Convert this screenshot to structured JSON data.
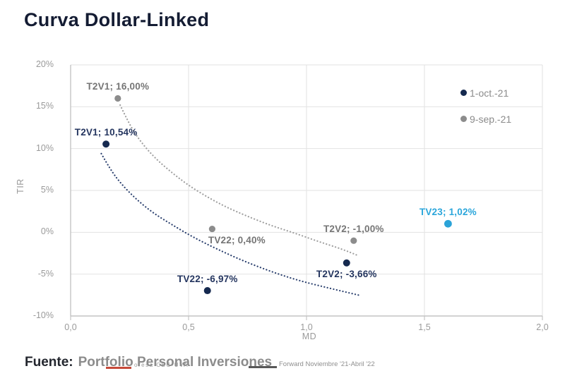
{
  "page": {
    "title": "Curva Dollar-Linked"
  },
  "chart_data": {
    "type": "scatter",
    "title": "Curva Dollar-Linked",
    "xlabel": "MD",
    "ylabel": "TIR",
    "xlim": [
      0,
      2
    ],
    "ylim": [
      -10,
      20
    ],
    "grid": true,
    "legend_position": "inside-top-right",
    "x_ticks": [
      {
        "v": 0,
        "label": "0,0"
      },
      {
        "v": 0.5,
        "label": "0,5"
      },
      {
        "v": 1,
        "label": "1,0"
      },
      {
        "v": 1.5,
        "label": "1,5"
      },
      {
        "v": 2,
        "label": "2,0"
      }
    ],
    "y_ticks": [
      {
        "v": 20,
        "label": "20%"
      },
      {
        "v": 15,
        "label": "15%"
      },
      {
        "v": 10,
        "label": "10%"
      },
      {
        "v": 5,
        "label": "5%"
      },
      {
        "v": 0,
        "label": "0%"
      },
      {
        "v": -5,
        "label": "-5%"
      },
      {
        "v": -10,
        "label": "-10%"
      }
    ],
    "series": [
      {
        "name": "1-oct.-21",
        "color": "#15294f",
        "label_color": "#24355f",
        "trend_color": "#2c416f",
        "in_legend": true,
        "points": [
          {
            "bond": "T2V1",
            "x": 0.15,
            "y": 10.54,
            "label": "T2V1; 10,54%",
            "label_pos": "above"
          },
          {
            "bond": "TV22",
            "x": 0.58,
            "y": -6.97,
            "label": "TV22; -6,97%",
            "label_pos": "above"
          },
          {
            "bond": "T2V2",
            "x": 1.17,
            "y": -3.66,
            "label": "T2V2; -3,66%",
            "label_pos": "below"
          }
        ],
        "trend": [
          [
            0.13,
            9.4
          ],
          [
            0.17,
            7.4
          ],
          [
            0.22,
            5.6
          ],
          [
            0.28,
            3.9
          ],
          [
            0.35,
            2.3
          ],
          [
            0.43,
            0.9
          ],
          [
            0.52,
            -0.6
          ],
          [
            0.62,
            -2.0
          ],
          [
            0.73,
            -3.4
          ],
          [
            0.85,
            -4.7
          ],
          [
            0.97,
            -5.8
          ],
          [
            1.1,
            -6.7
          ],
          [
            1.22,
            -7.5
          ]
        ]
      },
      {
        "name": "9-sep.-21",
        "color": "#8c8c8c",
        "label_color": "#757575",
        "trend_color": "#a0a0a0",
        "in_legend": true,
        "points": [
          {
            "bond": "T2V1",
            "x": 0.2,
            "y": 16.0,
            "label": "T2V1; 16,00%",
            "label_pos": "above"
          },
          {
            "bond": "TV22",
            "x": 0.6,
            "y": 0.4,
            "label": "TV22; 0,40%",
            "label_pos": "below",
            "label_dx": 35
          },
          {
            "bond": "T2V2",
            "x": 1.2,
            "y": -1.0,
            "label": "T2V2; -1,00%",
            "label_pos": "above"
          }
        ],
        "trend": [
          [
            0.21,
            15.2
          ],
          [
            0.25,
            12.8
          ],
          [
            0.3,
            10.7
          ],
          [
            0.36,
            8.8
          ],
          [
            0.43,
            7.1
          ],
          [
            0.5,
            5.6
          ],
          [
            0.58,
            4.2
          ],
          [
            0.66,
            3.0
          ],
          [
            0.75,
            1.9
          ],
          [
            0.85,
            0.8
          ],
          [
            0.95,
            -0.1
          ],
          [
            1.05,
            -1.1
          ],
          [
            1.15,
            -2.0
          ],
          [
            1.22,
            -2.8
          ]
        ]
      },
      {
        "name": "TV23",
        "color": "#2ba3d8",
        "label_color": "#2ba6db",
        "in_legend": false,
        "points": [
          {
            "bond": "TV23",
            "x": 1.6,
            "y": 1.02,
            "label": "TV23; 1,02%",
            "label_pos": "above"
          }
        ]
      }
    ]
  },
  "footer": {
    "source_label": "Fuente:",
    "source_text": "Portfolio Personal Inversiones",
    "clipped_fragments": {
      "left_text": "oresa CBC-UVA",
      "right_text": "Forward Noviembre '21-Abril '22"
    }
  }
}
